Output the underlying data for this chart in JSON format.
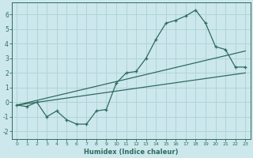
{
  "xlabel": "Humidex (Indice chaleur)",
  "bg_color": "#cce8ec",
  "line_color": "#2e6b5e",
  "grid_color": "#b0d4d8",
  "xlim": [
    -0.5,
    23.5
  ],
  "ylim": [
    -2.5,
    6.8
  ],
  "series1_x": [
    0,
    1,
    2,
    3,
    4,
    5,
    6,
    7,
    8,
    9,
    10,
    11,
    12,
    13,
    14,
    15,
    16,
    17,
    18,
    19,
    20,
    21,
    22,
    23
  ],
  "series1_y": [
    -0.2,
    -0.3,
    0.0,
    -1.0,
    -0.6,
    -1.2,
    -1.5,
    -1.5,
    -0.6,
    -0.5,
    1.3,
    2.0,
    2.1,
    3.0,
    4.3,
    5.4,
    5.6,
    5.9,
    6.3,
    5.4,
    3.8,
    3.6,
    2.4,
    2.4
  ],
  "series2_x": [
    0,
    23
  ],
  "series2_y": [
    -0.2,
    3.5
  ],
  "series3_x": [
    0,
    23
  ],
  "series3_y": [
    -0.2,
    2.0
  ]
}
